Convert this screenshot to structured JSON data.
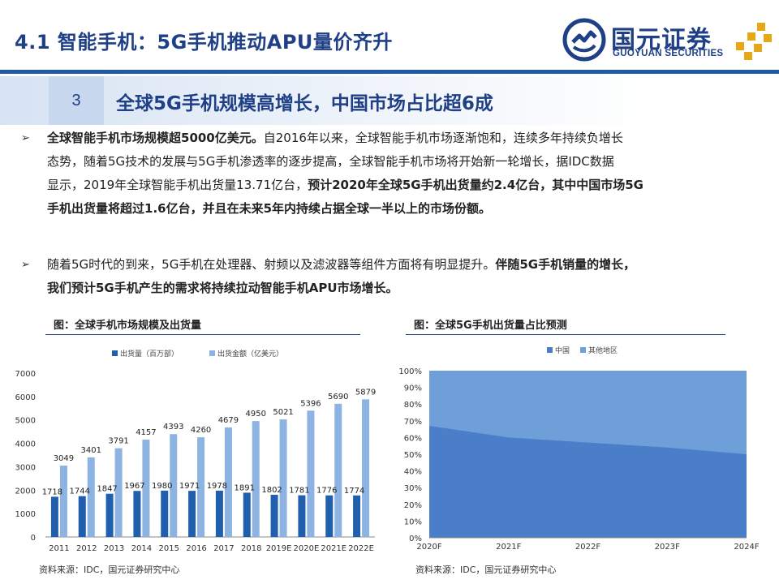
{
  "header": {
    "title": "4.1 智能手机：5G手机推动APU量价齐升",
    "logo_cn": "国元证券",
    "logo_en": "GUOYUAN SECURITIES"
  },
  "banner": {
    "number": "3",
    "text": "全球5G手机规模高增长，中国市场占比超6成"
  },
  "bullets": {
    "b1": {
      "lead_bold": "全球智能手机市场规模超5000亿美元。",
      "line1_rest": "自2016年以来，全球智能手机市场逐渐饱和，连续多年持续负增长",
      "line2": "态势，随着5G技术的发展与5G手机渗透率的逐步提高，全球智能手机市场将开始新一轮增长，据IDC数据",
      "line3_plain": "显示，2019年全球智能手机出货量13.71亿台，",
      "line3_bold": "预计2020年全球5G手机出货量约2.4亿台，其中中国市场5G",
      "line4_bold": "手机出货量将超过1.6亿台，并且在未来5年内持续占据全球一半以上的市场份额。"
    },
    "b2": {
      "line1_plain": "随着5G时代的到来，5G手机在处理器、射频以及滤波器等组件方面将有明显提升。",
      "line1_bold": "伴随5G手机销量的增长，",
      "line2_bold": "我们预计5G手机产生的需求将持续拉动智能手机APU市场增长。"
    }
  },
  "captions": {
    "chart1": "图：全球手机市场规模及出货量",
    "chart2": "图：全球5G手机出货量占比预测"
  },
  "sources": {
    "chart1": "资料来源：IDC，国元证券研究中心",
    "chart2": "资料来源：IDC，国元证券研究中心"
  },
  "colors": {
    "brand_blue": "#1f3f86",
    "bar_dark": "#1f5fae",
    "bar_light": "#8db3e2",
    "area_dark": "#4a7ec8",
    "area_light": "#6e9fd9"
  },
  "chart_data": [
    {
      "type": "bar",
      "categories": [
        "2011",
        "2012",
        "2013",
        "2014",
        "2015",
        "2016",
        "2017",
        "2018",
        "2019E",
        "2020E",
        "2021E",
        "2022E"
      ],
      "series": [
        {
          "name": "出货量（百万部）",
          "values": [
            1718,
            1744,
            1847,
            1967,
            1980,
            1971,
            1978,
            1891,
            1802,
            1781,
            1776,
            1774
          ]
        },
        {
          "name": "出货金额（亿美元）",
          "values": [
            3049,
            3401,
            3791,
            4157,
            4393,
            4260,
            4679,
            4950,
            5021,
            5396,
            5690,
            5879
          ]
        }
      ],
      "yticks": [
        "0",
        "1000",
        "2000",
        "3000",
        "4000",
        "5000",
        "6000",
        "7000"
      ],
      "ylim": [
        0,
        7000
      ],
      "legend": "top"
    },
    {
      "type": "area",
      "x": [
        "2020F",
        "2021F",
        "2022F",
        "2023F",
        "2024F"
      ],
      "series": [
        {
          "name": "中国",
          "values": [
            0.67,
            0.6,
            0.57,
            0.54,
            0.5
          ]
        },
        {
          "name": "其他地区",
          "values": [
            0.33,
            0.4,
            0.43,
            0.46,
            0.5
          ]
        }
      ],
      "yticks": [
        "0%",
        "10%",
        "20%",
        "30%",
        "40%",
        "50%",
        "60%",
        "70%",
        "80%",
        "90%",
        "100%"
      ],
      "ylim": [
        0,
        1
      ],
      "legend": "top",
      "stacked": true
    }
  ]
}
